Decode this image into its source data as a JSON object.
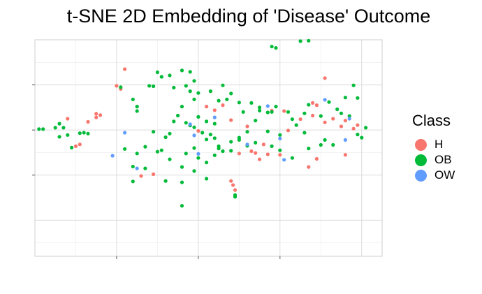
{
  "chart_data": {
    "type": "scatter",
    "title": "t-SNE 2D Embedding of 'Disease' Outcome",
    "xlabel": "",
    "ylabel": "",
    "xlim": [
      -45,
      40
    ],
    "ylim": [
      -28,
      20
    ],
    "grid": true,
    "legend": {
      "title": "Class",
      "placement": "right"
    },
    "series": [
      {
        "name": "H",
        "color": "#F8766D",
        "points": [
          [
            -37,
            2.5
          ],
          [
            -32,
            1.8
          ],
          [
            -30,
            3.6
          ],
          [
            -34,
            -3.2
          ],
          [
            -35,
            -3.6
          ],
          [
            -30,
            2.8
          ],
          [
            -29,
            3.3
          ],
          [
            -23,
            13.5
          ],
          [
            -25,
            9.8
          ],
          [
            -24,
            9.1
          ],
          [
            -3,
            5.2
          ],
          [
            1,
            5.5
          ],
          [
            3,
            2.2
          ],
          [
            -1,
            4.4
          ],
          [
            -5,
            -0.2
          ],
          [
            7,
            0.8
          ],
          [
            8,
            -4.7
          ],
          [
            5,
            -5.2
          ],
          [
            9,
            -5.1
          ],
          [
            10,
            -6.5
          ],
          [
            12,
            -5.4
          ],
          [
            15,
            -5.5
          ],
          [
            11,
            -3.2
          ],
          [
            13,
            4.3
          ],
          [
            16,
            4.2
          ],
          [
            20,
            2.4
          ],
          [
            17,
            -0.1
          ],
          [
            23,
            6.0
          ],
          [
            24,
            5.5
          ],
          [
            26,
            11.5
          ],
          [
            23,
            3.2
          ],
          [
            28,
            2.5
          ],
          [
            30,
            0.8
          ],
          [
            31,
            2.1
          ],
          [
            33,
            0.3
          ],
          [
            34,
            1.1
          ],
          [
            26,
            1.7
          ],
          [
            24,
            -6.4
          ],
          [
            22,
            -8.2
          ],
          [
            31,
            -5.5
          ],
          [
            3,
            -11.3
          ],
          [
            3.5,
            -12.2
          ],
          [
            4,
            -13.3
          ],
          [
            -16,
            -9.8
          ],
          [
            -19,
            -10.2
          ]
        ]
      },
      {
        "name": "OB",
        "color": "#00BA38",
        "points": [
          [
            -44,
            0.2
          ],
          [
            -43,
            0.2
          ],
          [
            -40,
            0.5
          ],
          [
            -39,
            1.4
          ],
          [
            -39,
            -1.5
          ],
          [
            -38,
            0.5
          ],
          [
            -36,
            -3.9
          ],
          [
            -37,
            -1.1
          ],
          [
            -33,
            -0.6
          ],
          [
            -34,
            -0.7
          ],
          [
            -32,
            -0.8
          ],
          [
            -24,
            9.5
          ],
          [
            -21,
            6.8
          ],
          [
            -20,
            5.2
          ],
          [
            -20,
            4.2
          ],
          [
            -17,
            9.8
          ],
          [
            -16,
            9.7
          ],
          [
            -15,
            12.8
          ],
          [
            -14,
            11.8
          ],
          [
            -12,
            12.1
          ],
          [
            -11,
            9.4
          ],
          [
            -9,
            13.2
          ],
          [
            -7,
            12.9
          ],
          [
            -6,
            10.9
          ],
          [
            -6,
            6.8
          ],
          [
            -5,
            8.2
          ],
          [
            -2,
            8.6
          ],
          [
            1,
            9.9
          ],
          [
            3,
            8.1
          ],
          [
            0,
            6.5
          ],
          [
            -9,
            5.2
          ],
          [
            -10,
            3.2
          ],
          [
            -11,
            1.9
          ],
          [
            -8,
            1.6
          ],
          [
            -6,
            0.6
          ],
          [
            -4,
            -0.6
          ],
          [
            -3,
            1.9
          ],
          [
            -1,
            1.4
          ],
          [
            -3,
            -2.1
          ],
          [
            -6,
            -4.0
          ],
          [
            -8,
            -5.2
          ],
          [
            -12,
            -0.8
          ],
          [
            -13,
            -1.6
          ],
          [
            -16,
            -0.4
          ],
          [
            -18,
            -3.7
          ],
          [
            -20,
            -5.2
          ],
          [
            -23,
            -4.2
          ],
          [
            -15,
            -4.8
          ],
          [
            -14,
            -4.5
          ],
          [
            -12,
            -6.5
          ],
          [
            -9,
            -8.2
          ],
          [
            -5,
            -6.2
          ],
          [
            -3,
            -7.2
          ],
          [
            -1,
            -1.8
          ],
          [
            0,
            -3.6
          ],
          [
            3,
            -2.6
          ],
          [
            5,
            -1.7
          ],
          [
            7,
            -0.4
          ],
          [
            9,
            2.1
          ],
          [
            10,
            4.3
          ],
          [
            12,
            -0.3
          ],
          [
            13,
            4.0
          ],
          [
            15,
            -1.1
          ],
          [
            17,
            4.0
          ],
          [
            18,
            2.4
          ],
          [
            19,
            1.1
          ],
          [
            21,
            -0.6
          ],
          [
            21,
            3.7
          ],
          [
            22,
            5.6
          ],
          [
            25,
            3.1
          ],
          [
            27,
            6.2
          ],
          [
            29,
            4.6
          ],
          [
            30,
            3.7
          ],
          [
            32,
            3.1
          ],
          [
            31,
            7.2
          ],
          [
            33,
            9.9
          ],
          [
            34,
            7.1
          ],
          [
            35,
            -1.7
          ],
          [
            36,
            0.5
          ],
          [
            34,
            -1.0
          ],
          [
            28,
            -3.3
          ],
          [
            26,
            -2.2
          ],
          [
            25,
            -3.3
          ],
          [
            22,
            -4.1
          ],
          [
            18,
            -6.2
          ],
          [
            15,
            -4.5
          ],
          [
            13,
            -3.6
          ],
          [
            9,
            -2.8
          ],
          [
            7,
            -3.5
          ],
          [
            5,
            -2.2
          ],
          [
            3,
            -4.6
          ],
          [
            1,
            -4.7
          ],
          [
            -1,
            -5.6
          ],
          [
            -3,
            -10.8
          ],
          [
            -6,
            -9.1
          ],
          [
            -9,
            -11.6
          ],
          [
            -13,
            -11.3
          ],
          [
            -18,
            -8.5
          ],
          [
            -21,
            -8.1
          ],
          [
            -21,
            -11.4
          ],
          [
            -8,
            9.8
          ],
          [
            -7,
            8.6
          ],
          [
            2,
            6.8
          ],
          [
            5,
            6.1
          ],
          [
            6,
            4.0
          ],
          [
            8,
            6.0
          ],
          [
            10,
            5.0
          ],
          [
            12,
            3.9
          ],
          [
            14,
            5.2
          ],
          [
            0,
            -4.1
          ],
          [
            -2,
            -1.0
          ],
          [
            -5,
            2.9
          ],
          [
            -7,
            1.0
          ],
          [
            13,
            18.5
          ],
          [
            14,
            18.2
          ],
          [
            20,
            19.7
          ],
          [
            22,
            19.8
          ],
          [
            4,
            -14.4
          ],
          [
            4,
            -14.8
          ],
          [
            -9,
            -16.8
          ]
        ]
      },
      {
        "name": "OW",
        "color": "#619CFF",
        "points": [
          [
            -23,
            -0.6
          ],
          [
            -26,
            -5.7
          ],
          [
            -20,
            -8.5
          ],
          [
            -7,
            1.3
          ],
          [
            -6,
            -1.2
          ],
          [
            -5,
            -5.3
          ],
          [
            -1,
            2.8
          ],
          [
            7,
            -3.2
          ],
          [
            12,
            5.3
          ],
          [
            15,
            -1.9
          ],
          [
            16,
            -6.6
          ],
          [
            26,
            6.7
          ],
          [
            31,
            -2.2
          ],
          [
            32,
            2.5
          ]
        ]
      }
    ]
  }
}
